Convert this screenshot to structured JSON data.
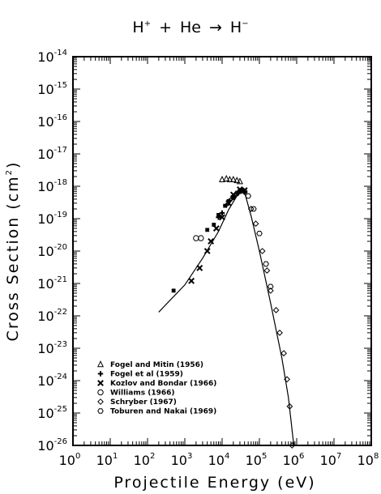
{
  "chart_data": {
    "type": "scatter",
    "title": {
      "projectile": "H",
      "projectile_charge": "+",
      "plus": "+",
      "target": "He",
      "arrow": "→",
      "product": "H",
      "product_charge": "−"
    },
    "xlabel": "Projectile Energy (eV)",
    "ylabel": {
      "main": "Cross Section (cm",
      "exp": "2",
      "close": ")"
    },
    "x_scale": "log",
    "y_scale": "log",
    "xlim": [
      1,
      100000000
    ],
    "ylim": [
      1e-26,
      1e-14
    ],
    "x_ticks": [
      {
        "base": "10",
        "exp": "0"
      },
      {
        "base": "10",
        "exp": "1"
      },
      {
        "base": "10",
        "exp": "2"
      },
      {
        "base": "10",
        "exp": "3"
      },
      {
        "base": "10",
        "exp": "4"
      },
      {
        "base": "10",
        "exp": "5"
      },
      {
        "base": "10",
        "exp": "6"
      },
      {
        "base": "10",
        "exp": "7"
      },
      {
        "base": "10",
        "exp": "8"
      }
    ],
    "y_ticks": [
      {
        "base": "10",
        "exp": "-14"
      },
      {
        "base": "10",
        "exp": "-15"
      },
      {
        "base": "10",
        "exp": "-16"
      },
      {
        "base": "10",
        "exp": "-17"
      },
      {
        "base": "10",
        "exp": "-18"
      },
      {
        "base": "10",
        "exp": "-19"
      },
      {
        "base": "10",
        "exp": "-20"
      },
      {
        "base": "10",
        "exp": "-21"
      },
      {
        "base": "10",
        "exp": "-22"
      },
      {
        "base": "10",
        "exp": "-23"
      },
      {
        "base": "10",
        "exp": "-24"
      },
      {
        "base": "10",
        "exp": "-25"
      },
      {
        "base": "10",
        "exp": "-26"
      }
    ],
    "grid": false,
    "legend_position": "bottom-left",
    "fit_curve": {
      "x": [
        200,
        1000,
        3000,
        8000,
        15000,
        25000,
        33000,
        40000,
        60000,
        100000,
        200000,
        400000,
        600000,
        800000,
        850000
      ],
      "y": [
        1.3e-22,
        9e-22,
        6e-21,
        4e-20,
        1.9e-19,
        5e-19,
        7e-19,
        6.5e-19,
        1.2e-19,
        1e-20,
        2.5e-22,
        5e-24,
        3e-25,
        1.6e-26,
        1e-26
      ]
    },
    "series": [
      {
        "name": "Fogel and Mitin (1956)",
        "marker": "triangle",
        "x": [
          10000,
          13000,
          16000,
          20000,
          25000,
          30000
        ],
        "y": [
          1.6e-18,
          1.7e-18,
          1.6e-18,
          1.6e-18,
          1.5e-18,
          1.4e-18
        ]
      },
      {
        "name": "Fogel et al (1959)",
        "marker": "plus",
        "x": [
          8000,
          10000,
          13000,
          16000,
          20000,
          25000,
          30000,
          35000,
          40000
        ],
        "y": [
          1.1e-19,
          1.5e-19,
          2.6e-19,
          3.6e-19,
          5e-19,
          6e-19,
          7e-19,
          7.5e-19,
          6.5e-19
        ]
      },
      {
        "name": "Kozlov and Bondar (1966)",
        "marker": "x",
        "x": [
          1500,
          2500,
          4000,
          5000,
          7000,
          10000,
          15000,
          20000,
          30000,
          40000
        ],
        "y": [
          1.2e-21,
          3e-21,
          1e-20,
          2e-20,
          5e-20,
          1.1e-19,
          3e-19,
          5.5e-19,
          8e-19,
          7.5e-19
        ]
      },
      {
        "name": "Williams (1966)",
        "marker": "filled-square",
        "x": [
          500,
          4000,
          6000,
          8000,
          12000,
          15000,
          20000
        ],
        "y": [
          6e-22,
          4.5e-20,
          6.5e-20,
          1.3e-19,
          2.5e-19,
          3.5e-19,
          4.5e-19
        ]
      },
      {
        "name": "Schryber (1967)",
        "marker": "diamond",
        "x": [
          60000,
          80000,
          120000,
          160000,
          200000,
          280000,
          350000,
          450000,
          550000,
          650000,
          750000
        ],
        "y": [
          2e-19,
          7e-20,
          1e-20,
          2.5e-21,
          6e-22,
          1.5e-22,
          3e-23,
          7e-24,
          1.1e-24,
          1.6e-25,
          1e-26
        ]
      },
      {
        "name": "Toburen and Nakai (1969)",
        "marker": "hexagon",
        "x": [
          20000,
          25000,
          30000,
          35000,
          40000,
          50000,
          70000,
          100000,
          150000,
          200000
        ],
        "y": [
          4.5e-19,
          6e-19,
          7e-19,
          7.5e-19,
          7e-19,
          5e-19,
          2e-19,
          3.5e-20,
          4e-21,
          8e-22
        ]
      },
      {
        "name": "Williams (1966) open circles",
        "marker": "circle",
        "x": [
          2000,
          2700
        ],
        "y": [
          2.5e-20,
          2.5e-20
        ]
      }
    ],
    "legend": [
      {
        "marker": "triangle",
        "label": "Fogel and Mitin (1956)"
      },
      {
        "marker": "plus",
        "label": "Fogel et al (1959)"
      },
      {
        "marker": "x",
        "label": "Kozlov and Bondar (1966)"
      },
      {
        "marker": "circle",
        "label": "Williams (1966)"
      },
      {
        "marker": "diamond",
        "label": "Schryber (1967)"
      },
      {
        "marker": "hexagon",
        "label": "Toburen and Nakai (1969)"
      }
    ]
  }
}
